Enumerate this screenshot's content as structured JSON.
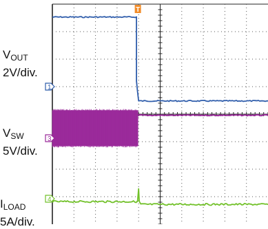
{
  "chart_data": {
    "type": "line",
    "title": "",
    "grid": true,
    "divisions": {
      "x": 10,
      "y": 8
    },
    "trigger_marker": "T",
    "x_unit": "div",
    "y_unit": "div",
    "x_range": [
      0,
      10
    ],
    "y_range": [
      0,
      8
    ],
    "series": [
      {
        "id": "vout",
        "label_main": "V",
        "label_sub": "OUT",
        "scale": "2V/div.",
        "marker": "1",
        "color": "#2f5dab",
        "kind": "step",
        "x": [
          0,
          3.9,
          3.9,
          4.0,
          10
        ],
        "y": [
          7.53,
          7.53,
          5.2,
          4.48,
          4.48
        ]
      },
      {
        "id": "vsw",
        "label_main": "V",
        "label_sub": "SW",
        "scale": "5V/div.",
        "marker": "3",
        "color": "#9b2a9b",
        "kind": "band_then_line",
        "band_x": [
          0,
          3.98
        ],
        "band_y": [
          2.84,
          4.14
        ],
        "x": [
          3.98,
          10
        ],
        "y": [
          3.96,
          3.96
        ]
      },
      {
        "id": "iload",
        "label_main": "I",
        "label_sub": "LOAD",
        "scale": "5A/div.",
        "marker": "4",
        "color": "#72c12a",
        "kind": "line_with_spike",
        "x": [
          0,
          3.95,
          4.0,
          4.03,
          4.1,
          10
        ],
        "y": [
          0.82,
          0.82,
          1.28,
          0.82,
          0.72,
          0.72
        ]
      }
    ]
  }
}
